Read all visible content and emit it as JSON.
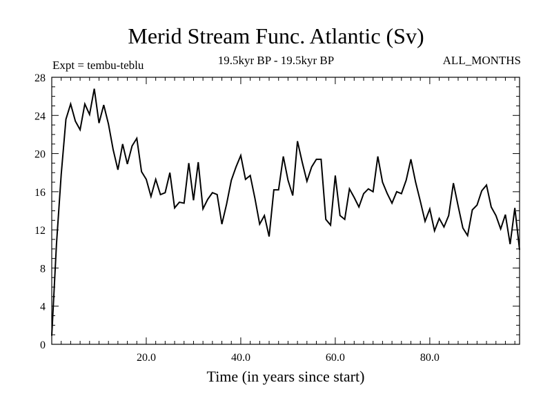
{
  "header": {
    "title": "Merid Stream Func. Atlantic (Sv)",
    "subtitle": "19.5kyr BP - 19.5kyr BP",
    "experiment": "Expt = tembu-teblu",
    "months": "ALL_MONTHS"
  },
  "chart_data": {
    "type": "line",
    "title": "Merid Stream Func. Atlantic (Sv)",
    "xlabel": "Time (in years since start)",
    "ylabel": "",
    "xlim": [
      0.0,
      99.0
    ],
    "ylim": [
      0,
      28
    ],
    "xticks": [
      20.0,
      40.0,
      60.0,
      80.0
    ],
    "xtick_labels": [
      "20.0",
      "40.0",
      "60.0",
      "80.0"
    ],
    "yticks": [
      0,
      4,
      8,
      12,
      16,
      20,
      24,
      28
    ],
    "ytick_labels": [
      "0",
      "4",
      "8",
      "12",
      "16",
      "20",
      "24",
      "28"
    ],
    "grid": false,
    "series": [
      {
        "name": "Merid Stream Func. Atlantic",
        "color": "#000000",
        "x": [
          0,
          1,
          2,
          3,
          4,
          5,
          6,
          7,
          8,
          9,
          10,
          11,
          12,
          13,
          14,
          15,
          16,
          17,
          18,
          19,
          20,
          21,
          22,
          23,
          24,
          25,
          26,
          27,
          28,
          29,
          30,
          31,
          32,
          33,
          34,
          35,
          36,
          37,
          38,
          39,
          40,
          41,
          42,
          43,
          44,
          45,
          46,
          47,
          48,
          49,
          50,
          51,
          52,
          53,
          54,
          55,
          56,
          57,
          58,
          59,
          60,
          61,
          62,
          63,
          64,
          65,
          66,
          67,
          68,
          69,
          70,
          71,
          72,
          73,
          74,
          75,
          76,
          77,
          78,
          79,
          80,
          81,
          82,
          83,
          84,
          85,
          86,
          87,
          88,
          89,
          90,
          91,
          92,
          93,
          94,
          95,
          96,
          97,
          98,
          99
        ],
        "values": [
          0.9,
          10.5,
          17.8,
          23.6,
          25.2,
          23.4,
          22.5,
          25.2,
          24.1,
          26.8,
          23.2,
          25.1,
          23.1,
          20.4,
          18.3,
          21.0,
          18.9,
          20.8,
          21.6,
          18.1,
          17.3,
          15.5,
          17.3,
          15.7,
          15.9,
          18.0,
          14.3,
          14.9,
          14.8,
          19.0,
          15.1,
          19.1,
          14.2,
          15.2,
          15.9,
          15.7,
          12.6,
          14.7,
          17.2,
          18.6,
          19.8,
          17.3,
          17.7,
          15.3,
          12.6,
          13.5,
          11.3,
          16.2,
          16.2,
          19.7,
          17.2,
          15.6,
          21.3,
          19.1,
          17.1,
          18.6,
          19.4,
          19.4,
          13.1,
          12.5,
          17.7,
          13.5,
          13.1,
          16.3,
          15.4,
          14.4,
          15.8,
          16.3,
          16.0,
          19.7,
          17.0,
          15.8,
          14.8,
          16.0,
          15.8,
          17.2,
          19.4,
          17.0,
          15.0,
          12.9,
          14.2,
          11.9,
          13.2,
          12.3,
          13.5,
          16.9,
          14.5,
          12.2,
          11.4,
          14.1,
          14.6,
          16.1,
          16.7,
          14.4,
          13.5,
          12.1,
          13.6,
          10.5,
          14.3,
          9.9
        ]
      }
    ]
  }
}
